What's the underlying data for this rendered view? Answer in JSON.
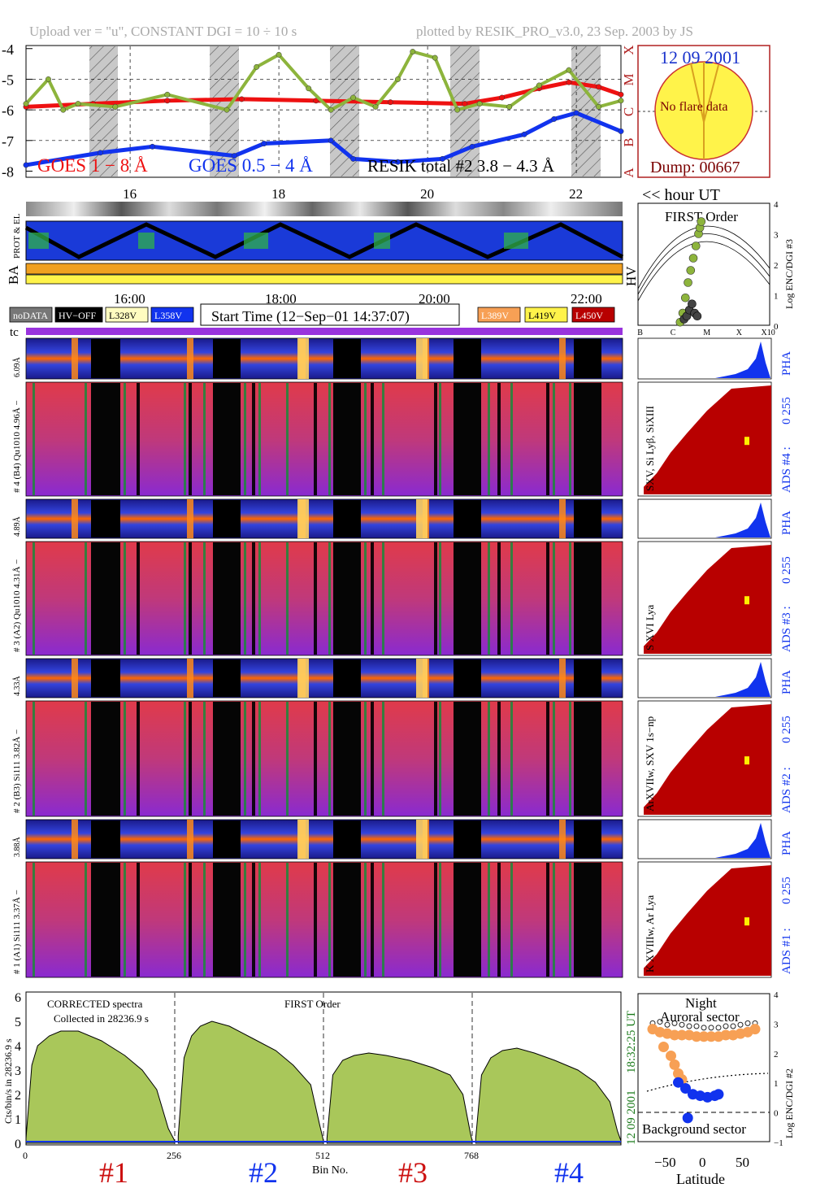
{
  "header": {
    "upload": "Upload ver = \"u\", CONSTANT  DGI =  10 ÷  10 s",
    "plotted": "plotted by RESIK_PRO_v3.0, 23 Sep. 2003 by JS"
  },
  "colors": {
    "goes_long": "#ee1111",
    "goes_short": "#1133ee",
    "resik_curve": "#8db43c",
    "orange": "#f7a055",
    "purple": "#9933dd",
    "sun": "#fff34a",
    "dark_red": "#b80000",
    "green_hist": "#a9c75a"
  },
  "goes_panel": {
    "yticks": [
      "-4",
      "-5",
      "-6",
      "-7",
      "-8"
    ],
    "class_labels": [
      "X",
      "M",
      "C",
      "B",
      "A"
    ],
    "xticks": [
      "16",
      "18",
      "20",
      "22"
    ],
    "legend_goes_long": "GOES 1 − 8 Å",
    "legend_goes_short": "GOES 0.5 − 4 Å",
    "legend_resik": "RESIK total #2  3.8 − 4.3 Å",
    "hour_label": "<< hour UT"
  },
  "sun_panel": {
    "date": "12 09 2001",
    "no_flare": "No flare data",
    "dump": "Dump: 00667"
  },
  "status_panel": {
    "prot_el": "PROT & EL",
    "ba": "BA",
    "hv": "HV"
  },
  "hv_legend": {
    "time_ticks": [
      "16:00",
      "18:00",
      "20:00",
      "22:00"
    ],
    "items": [
      "noDATA",
      "HV−OFF",
      "L328V",
      "L358V",
      "L389V",
      "L419V",
      "L450V"
    ],
    "start_time": "Start Time (12−Sep−01 14:37:07)",
    "tc": "tc"
  },
  "first_order_panel": {
    "title": "FIRST Order",
    "ylabel": "Log ENC/DGI #3",
    "yticks": [
      "4",
      "3",
      "2",
      "1",
      "0"
    ],
    "xticks": [
      "B",
      "C",
      "M",
      "X",
      "X10"
    ]
  },
  "channels": [
    {
      "pha_label": "# 4 (B4) Qu1010  4.96Å − 6.09Å",
      "pha_short": "6.09Å",
      "main_label": "# 4 (B4) Qu1010  4.96Å −",
      "line_label": "SXV, Si Lyβ, SiXIII",
      "ads_label": "ADS #4 :",
      "pha": "PHA",
      "range": "0 255"
    },
    {
      "pha_label": "4.31Å − 4.89Å",
      "pha_short": "4.89Å",
      "main_label": "# 3 (A2) Qu1010  4.31Å −",
      "line_label": "S XVI Lya",
      "ads_label": "ADS #3 :",
      "pha": "PHA",
      "range": "0 255"
    },
    {
      "pha_label": "3.82Å − 4.33Å",
      "pha_short": "4.33Å",
      "main_label": "# 2 (B3) Si111  3.82Å −",
      "line_label": "ArXVIIw, SXV 1s−np",
      "ads_label": "ADS #2 :",
      "pha": "PHA",
      "range": "0 255"
    },
    {
      "pha_label": "3.37Å − 3.88Å",
      "pha_short": "3.88Å",
      "main_label": "# 1 (A1) Si111  3.37Å −",
      "line_label": "K XVIIIw, Ar Lya",
      "ads_label": "ADS #1 :",
      "pha": "PHA",
      "range": "0 255"
    }
  ],
  "spectrum_panel": {
    "title": "CORRECTED spectra",
    "subtitle": "Collected in 28236.9 s",
    "first_order": "FIRST Order",
    "ylabel": "Cts/bin/s in 28236.9 s",
    "yticks": [
      "6",
      "5",
      "4",
      "3",
      "2",
      "1",
      "0"
    ],
    "xticks": [
      "0",
      "256",
      "512",
      "768"
    ],
    "xlabel": "Bin No.",
    "crystal_labels": [
      "#1",
      "#2",
      "#3",
      "#4"
    ],
    "side_time": "18:32:25 UT",
    "side_date": "12 09 2001"
  },
  "latitude_panel": {
    "night": "Night",
    "auroral": "Auroral sector",
    "background": "Background sector",
    "xlabel": "Latitude",
    "xticks": [
      "−50",
      "0",
      "50"
    ],
    "yticks": [
      "4",
      "3",
      "2",
      "1",
      "0",
      "−1"
    ],
    "ylabel": "Log ENC/DGI #2"
  },
  "chart_data": [
    {
      "type": "scatter",
      "panel": "goes",
      "x_unit": "hour UT",
      "y_unit": "log flux",
      "xlim": [
        14.6,
        22.6
      ],
      "ylim": [
        -8.2,
        -3.9
      ],
      "grid": true,
      "series": [
        {
          "name": "GOES 1 − 8 Å",
          "x": [
            14.6,
            15.5,
            16.5,
            17.5,
            18.5,
            19.5,
            20.5,
            21.0,
            21.5,
            21.9,
            22.3,
            22.6
          ],
          "y": [
            -5.9,
            -5.8,
            -5.7,
            -5.65,
            -5.7,
            -5.75,
            -5.8,
            -5.6,
            -5.3,
            -5.1,
            -5.25,
            -5.5
          ]
        },
        {
          "name": "GOES 0.5 − 4 Å",
          "x": [
            14.6,
            15.6,
            16.3,
            17.4,
            17.8,
            18.7,
            19.0,
            19.6,
            20.2,
            20.6,
            21.3,
            21.7,
            22.0,
            22.6
          ],
          "y": [
            -7.8,
            -7.4,
            -7.2,
            -7.5,
            -7.1,
            -7.0,
            -7.6,
            -7.7,
            -7.6,
            -7.2,
            -6.8,
            -6.3,
            -6.1,
            -6.7
          ]
        },
        {
          "name": "RESIK total #2  3.8 − 4.3 Å",
          "x": [
            14.6,
            14.9,
            15.1,
            15.3,
            15.8,
            16.5,
            17.3,
            17.7,
            18.0,
            18.4,
            18.7,
            19.0,
            19.3,
            19.6,
            19.8,
            20.1,
            20.4,
            20.7,
            21.1,
            21.5,
            21.9,
            22.3,
            22.6
          ],
          "y": [
            -5.8,
            -5.0,
            -6.0,
            -5.8,
            -5.9,
            -5.5,
            -6.0,
            -4.6,
            -4.2,
            -5.3,
            -6.0,
            -5.6,
            -5.9,
            -5.0,
            -4.1,
            -4.3,
            -6.0,
            -5.8,
            -5.9,
            -5.2,
            -4.7,
            -5.9,
            -5.7
          ]
        }
      ]
    },
    {
      "type": "area",
      "panel": "spectrum",
      "xlim": [
        0,
        1024
      ],
      "ylim": [
        0,
        6.2
      ],
      "segment_boundaries": [
        256,
        512,
        768
      ],
      "series": [
        {
          "x": [
            0,
            10,
            20,
            40,
            60,
            90,
            130,
            170,
            200,
            225,
            245,
            256
          ],
          "y": [
            0.2,
            3.2,
            4.0,
            4.4,
            4.6,
            4.6,
            4.2,
            3.6,
            3.0,
            2.2,
            0.6,
            0.1
          ]
        },
        {
          "x": [
            262,
            272,
            285,
            300,
            320,
            350,
            390,
            430,
            460,
            490,
            505,
            512
          ],
          "y": [
            0.3,
            3.5,
            4.4,
            4.8,
            5.0,
            4.8,
            4.3,
            3.8,
            3.2,
            2.4,
            0.8,
            0.1
          ]
        },
        {
          "x": [
            518,
            528,
            545,
            565,
            590,
            620,
            660,
            700,
            730,
            752,
            765,
            768
          ],
          "y": [
            0.2,
            2.8,
            3.4,
            3.6,
            3.7,
            3.6,
            3.4,
            3.1,
            2.8,
            2.0,
            0.4,
            0.1
          ]
        },
        {
          "x": [
            774,
            784,
            800,
            820,
            845,
            875,
            910,
            950,
            980,
            1005,
            1018,
            1024
          ],
          "y": [
            0.2,
            2.8,
            3.5,
            3.8,
            3.9,
            3.7,
            3.4,
            3.0,
            2.5,
            1.7,
            0.5,
            0.1
          ]
        }
      ]
    },
    {
      "type": "scatter",
      "panel": "latitude",
      "xlim": [
        -90,
        90
      ],
      "ylim": [
        -1,
        4
      ],
      "series": [
        {
          "x": [
            -70,
            -60,
            -50,
            -40,
            -30,
            -20,
            -10,
            0,
            10,
            20,
            30,
            40,
            50,
            60,
            70
          ],
          "y": [
            3.0,
            3.05,
            2.95,
            3.0,
            2.95,
            2.9,
            2.9,
            2.85,
            2.85,
            2.85,
            2.9,
            2.9,
            2.95,
            3.0,
            3.0
          ]
        },
        {
          "x": [
            -70,
            -60,
            -50,
            -40,
            -30,
            -20,
            -10,
            0,
            10,
            20,
            30,
            40,
            50,
            60,
            70,
            -55,
            -45,
            -40,
            -35,
            -30
          ],
          "y": [
            2.8,
            2.7,
            2.65,
            2.6,
            2.6,
            2.6,
            2.55,
            2.55,
            2.55,
            2.55,
            2.6,
            2.6,
            2.65,
            2.7,
            2.8,
            2.2,
            1.9,
            1.6,
            1.3,
            1.1
          ]
        },
        {
          "x": [
            -35,
            -25,
            -15,
            -5,
            5,
            15,
            20,
            -22
          ],
          "y": [
            1.0,
            0.8,
            0.6,
            0.55,
            0.5,
            0.55,
            0.6,
            -0.2
          ]
        }
      ]
    },
    {
      "type": "scatter",
      "panel": "first_order",
      "xlim": [
        0,
        5
      ],
      "ylim": [
        0,
        4
      ],
      "series": [
        {
          "x": [
            1.6,
            1.7,
            1.8,
            1.9,
            2.0,
            2.1,
            2.2,
            2.3,
            2.35,
            2.4
          ],
          "y": [
            0.1,
            0.4,
            0.9,
            1.4,
            1.8,
            2.2,
            2.6,
            3.0,
            3.2,
            3.4
          ]
        },
        {
          "x": [
            1.75,
            1.85,
            1.95,
            2.05,
            2.15,
            2.25
          ],
          "y": [
            0.2,
            0.3,
            0.5,
            0.7,
            0.4,
            0.3
          ]
        }
      ]
    }
  ]
}
